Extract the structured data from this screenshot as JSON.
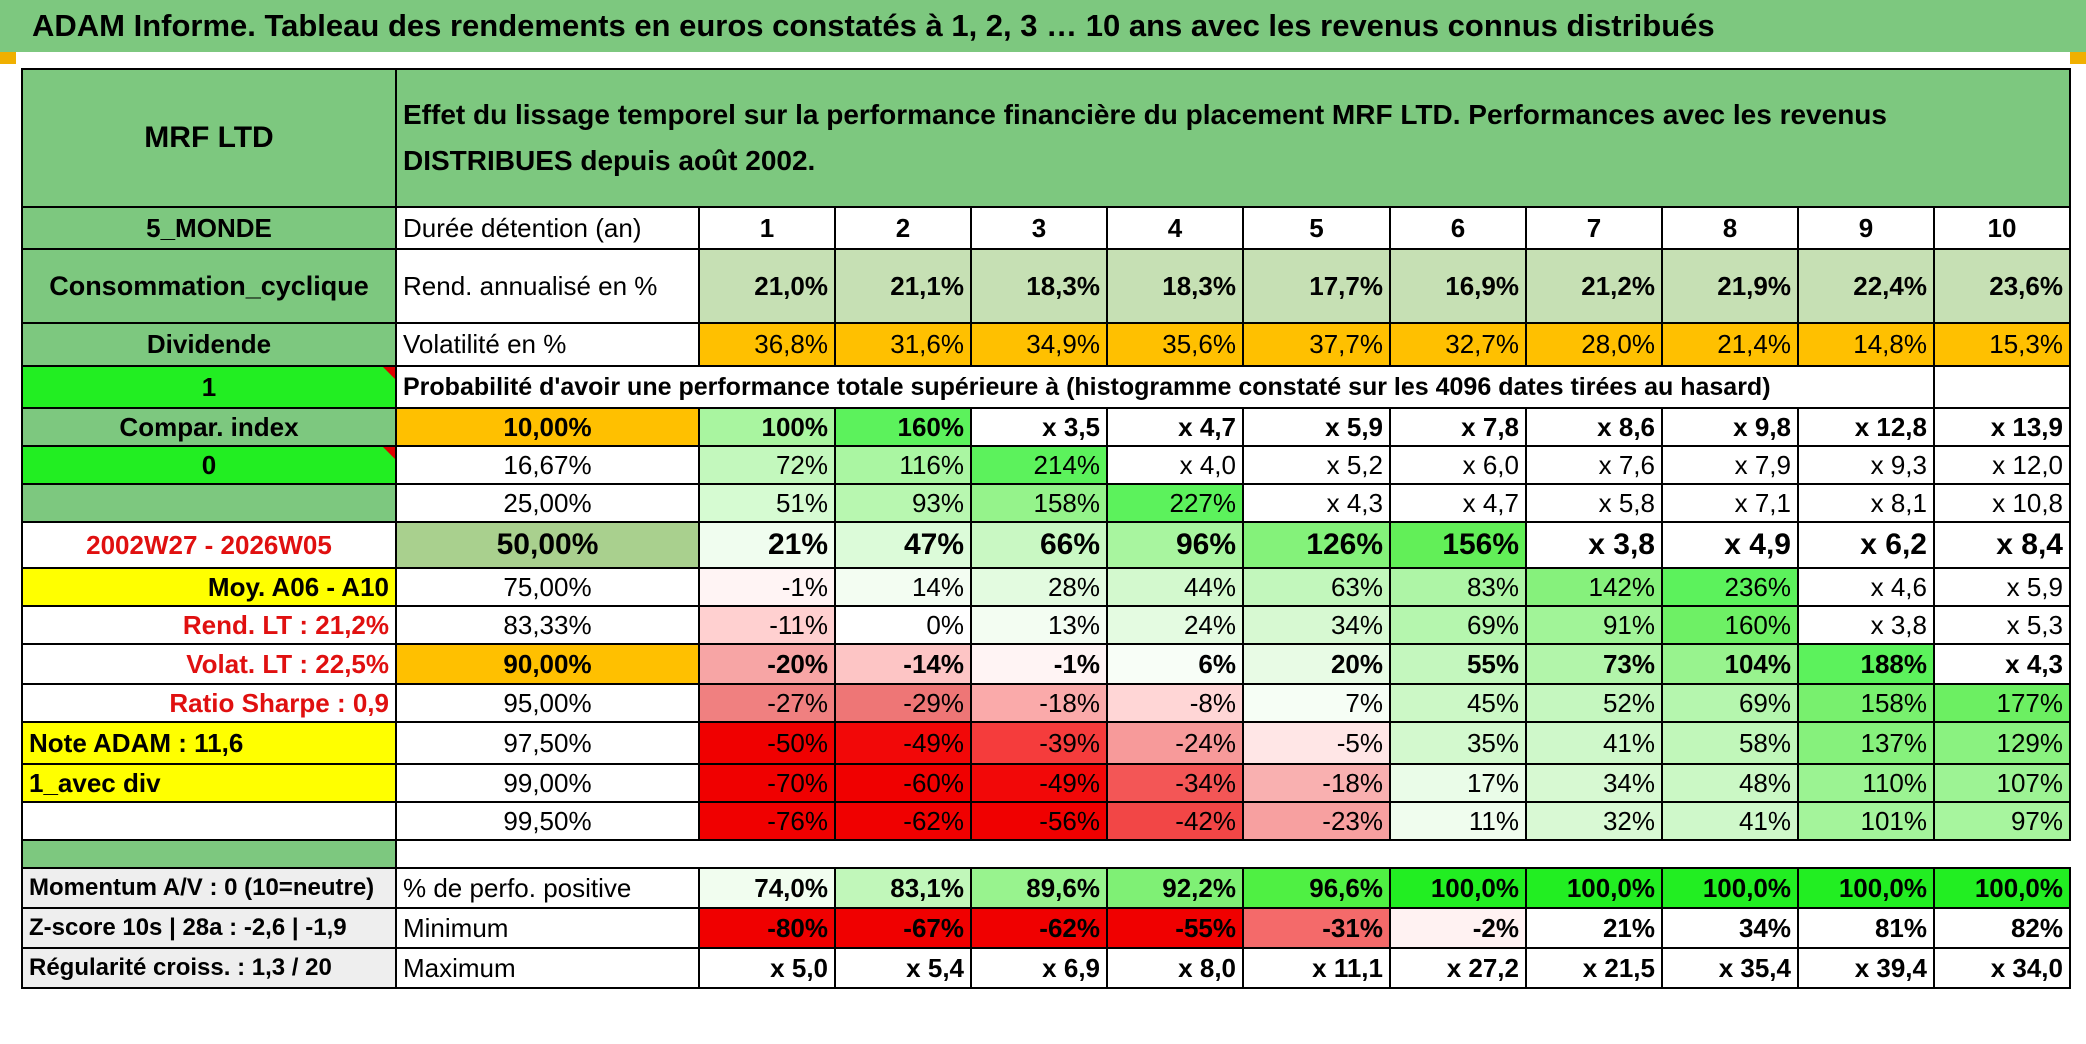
{
  "title": "ADAM Informe. Tableau des rendements en euros constatés à 1, 2, 3 … 10 ans avec les revenus connus distribués",
  "fund_name": "MRF LTD",
  "subtitle": "Effet du lissage temporel sur la performance financière du placement MRF LTD. Performances avec les revenus DISTRIBUES depuis août 2002.",
  "left_labels": {
    "region": "5_MONDE",
    "sector": "Consommation_cyclique",
    "income": "Dividende",
    "selector": "1",
    "compar_index": "Compar. index",
    "compar_value": "0",
    "period": "2002W27 - 2026W05",
    "moy": "Moy. A06 - A10",
    "rend_lt": "Rend. LT :   21,2%",
    "volat_lt": "Volat. LT :   22,5%",
    "sharpe": "Ratio Sharpe :    0,9",
    "note": "Note ADAM : 11,6",
    "avec_div": "1_avec div",
    "momentum": "Momentum A/V : 0 (10=neutre)",
    "zscore": "Z-score 10s | 28a : -2,6 | -1,9",
    "regularite": "Régularité croiss. : 1,3 / 20"
  },
  "header": {
    "label": "Durée détention (an)",
    "years": [
      "1",
      "2",
      "3",
      "4",
      "5",
      "6",
      "7",
      "8",
      "9",
      "10"
    ]
  },
  "rend": {
    "label": "Rend. annualisé en %",
    "values": [
      "21,0%",
      "21,1%",
      "18,3%",
      "18,3%",
      "17,7%",
      "16,9%",
      "21,2%",
      "21,9%",
      "22,4%",
      "23,6%"
    ],
    "colors": [
      "#c6e0b4",
      "#c6e0b4",
      "#c6e0b4",
      "#c6e0b4",
      "#c6e0b4",
      "#c6e0b4",
      "#c6e0b4",
      "#c6e0b4",
      "#c6e0b4",
      "#c6e0b4"
    ]
  },
  "vol": {
    "label": "Volatilité en %",
    "values": [
      "36,8%",
      "31,6%",
      "34,9%",
      "35,6%",
      "37,7%",
      "32,7%",
      "28,0%",
      "21,4%",
      "14,8%",
      "15,3%"
    ],
    "colors": [
      "#ffc000",
      "#ffc000",
      "#ffc000",
      "#ffc000",
      "#ffc000",
      "#ffc000",
      "#ffc000",
      "#ffc000",
      "#ffc000",
      "#ffc000"
    ]
  },
  "proba_label": "Probabilité d'avoir une performance totale supérieure à (histogramme constaté sur les 4096 dates tirées au hasard)",
  "prob_rows": [
    {
      "pct": "10,00%",
      "pct_color": "#ffc000",
      "bold": true,
      "big": false,
      "values": [
        "100%",
        "160%",
        "x 3,5",
        "x 4,7",
        "x 5,9",
        "x 7,8",
        "x 8,6",
        "x 9,8",
        "x 12,8",
        "x 13,9"
      ],
      "colors": [
        "#a9f5a0",
        "#5cf25c",
        "#ffffff",
        "#ffffff",
        "#ffffff",
        "#ffffff",
        "#ffffff",
        "#ffffff",
        "#ffffff",
        "#ffffff"
      ]
    },
    {
      "pct": "16,67%",
      "pct_color": "#ffffff",
      "bold": false,
      "big": false,
      "values": [
        "72%",
        "116%",
        "214%",
        "x 4,0",
        "x 5,2",
        "x 6,0",
        "x 7,6",
        "x 7,9",
        "x 9,3",
        "x 12,0"
      ],
      "colors": [
        "#c3f8bd",
        "#aaf6a2",
        "#5cf25c",
        "#ffffff",
        "#ffffff",
        "#ffffff",
        "#ffffff",
        "#ffffff",
        "#ffffff",
        "#ffffff"
      ]
    },
    {
      "pct": "25,00%",
      "pct_color": "#ffffff",
      "bold": false,
      "big": false,
      "values": [
        "51%",
        "93%",
        "158%",
        "227%",
        "x 4,3",
        "x 4,7",
        "x 5,8",
        "x 7,1",
        "x 8,1",
        "x 10,8"
      ],
      "colors": [
        "#d6fbd2",
        "#b8f7b0",
        "#95f38b",
        "#5cf25c",
        "#ffffff",
        "#ffffff",
        "#ffffff",
        "#ffffff",
        "#ffffff",
        "#ffffff"
      ]
    },
    {
      "pct": "50,00%",
      "pct_color": "#a9d08e",
      "bold": true,
      "big": true,
      "values": [
        "21%",
        "47%",
        "66%",
        "96%",
        "126%",
        "156%",
        "x 3,8",
        "x 4,9",
        "x 6,2",
        "x 8,4"
      ],
      "colors": [
        "#f0fdef",
        "#dcfbd9",
        "#c9f8c3",
        "#a8f59f",
        "#84f27a",
        "#62ef58",
        "#ffffff",
        "#ffffff",
        "#ffffff",
        "#ffffff"
      ]
    },
    {
      "pct": "75,00%",
      "pct_color": "#ffffff",
      "bold": false,
      "big": false,
      "values": [
        "-1%",
        "14%",
        "28%",
        "44%",
        "63%",
        "83%",
        "142%",
        "236%",
        "x 4,6",
        "x 5,9"
      ],
      "colors": [
        "#fff4f4",
        "#f3fdf2",
        "#e3fbe0",
        "#d3f9ce",
        "#c2f7bc",
        "#aef5a6",
        "#86f17c",
        "#5cf25c",
        "#ffffff",
        "#ffffff"
      ]
    },
    {
      "pct": "83,33%",
      "pct_color": "#ffffff",
      "bold": false,
      "big": false,
      "values": [
        "-11%",
        "0%",
        "13%",
        "24%",
        "34%",
        "69%",
        "91%",
        "160%",
        "x 3,8",
        "x 5,3"
      ],
      "colors": [
        "#ffd0d0",
        "#ffffff",
        "#f3fdf2",
        "#e4fbe1",
        "#d7f9d2",
        "#b5f6ae",
        "#a1f498",
        "#6ef065",
        "#ffffff",
        "#ffffff"
      ]
    },
    {
      "pct": "90,00%",
      "pct_color": "#ffc000",
      "bold": true,
      "big": false,
      "values": [
        "-20%",
        "-14%",
        "-1%",
        "6%",
        "20%",
        "55%",
        "73%",
        "104%",
        "188%",
        "x 4,3"
      ],
      "colors": [
        "#f7a5a5",
        "#fdc5c5",
        "#fff4f4",
        "#f8fef7",
        "#e8fbe5",
        "#c4f7be",
        "#b2f5aa",
        "#98f38e",
        "#5cf25c",
        "#ffffff"
      ]
    },
    {
      "pct": "95,00%",
      "pct_color": "#ffffff",
      "bold": false,
      "big": false,
      "values": [
        "-27%",
        "-29%",
        "-18%",
        "-8%",
        "7%",
        "45%",
        "52%",
        "69%",
        "158%",
        "177%"
      ],
      "colors": [
        "#f08080",
        "#ee7676",
        "#faaaaa",
        "#ffd6d6",
        "#f6fef5",
        "#ccf8c6",
        "#c5f7bf",
        "#b5f6ae",
        "#78f06e",
        "#6cef62"
      ]
    },
    {
      "pct": "97,50%",
      "pct_color": "#ffffff",
      "bold": false,
      "big": false,
      "values": [
        "-50%",
        "-49%",
        "-39%",
        "-24%",
        "-5%",
        "35%",
        "41%",
        "58%",
        "137%",
        "129%"
      ],
      "colors": [
        "#f00000",
        "#f20808",
        "#f53c3c",
        "#f79a9a",
        "#ffe6e6",
        "#d3f9ce",
        "#cff8ca",
        "#c1f7ba",
        "#86f17c",
        "#8af280"
      ]
    },
    {
      "pct": "99,00%",
      "pct_color": "#ffffff",
      "bold": false,
      "big": false,
      "values": [
        "-70%",
        "-60%",
        "-49%",
        "-34%",
        "-18%",
        "17%",
        "34%",
        "48%",
        "110%",
        "107%"
      ],
      "colors": [
        "#f00000",
        "#f00000",
        "#f20808",
        "#f35656",
        "#f9b0b0",
        "#eafcE8",
        "#d7f9d2",
        "#cbf8c5",
        "#9bf392",
        "#9df394"
      ]
    },
    {
      "pct": "99,50%",
      "pct_color": "#ffffff",
      "bold": false,
      "big": false,
      "values": [
        "-76%",
        "-62%",
        "-56%",
        "-42%",
        "-23%",
        "11%",
        "32%",
        "41%",
        "101%",
        "97%"
      ],
      "colors": [
        "#f00000",
        "#f00000",
        "#f00000",
        "#f24646",
        "#f7a0a0",
        "#f0fdee",
        "#d9f9d4",
        "#cff8ca",
        "#a4f49b",
        "#a7f59e"
      ]
    }
  ],
  "bottom_rows": [
    {
      "label": "% de perfo. positive",
      "values": [
        "74,0%",
        "83,1%",
        "89,6%",
        "92,2%",
        "96,6%",
        "100,0%",
        "100,0%",
        "100,0%",
        "100,0%",
        "100,0%"
      ],
      "colors": [
        "#f1fdef",
        "#c1f7ba",
        "#98f38e",
        "#7ff075",
        "#4ff043",
        "#22ee22",
        "#22ee22",
        "#22ee22",
        "#22ee22",
        "#22ee22"
      ]
    },
    {
      "label": "Minimum",
      "values": [
        "-80%",
        "-67%",
        "-62%",
        "-55%",
        "-31%",
        "-2%",
        "21%",
        "34%",
        "81%",
        "82%"
      ],
      "colors": [
        "#f00000",
        "#f00000",
        "#f00000",
        "#f00000",
        "#f46a6a",
        "#fff2f2",
        "#ffffff",
        "#ffffff",
        "#ffffff",
        "#ffffff"
      ]
    },
    {
      "label": "Maximum",
      "values": [
        "x 5,0",
        "x 5,4",
        "x 6,9",
        "x 8,0",
        "x 11,1",
        "x 27,2",
        "x 21,5",
        "x 35,4",
        "x 39,4",
        "x 34,0"
      ],
      "colors": [
        "#ffffff",
        "#ffffff",
        "#ffffff",
        "#ffffff",
        "#ffffff",
        "#ffffff",
        "#ffffff",
        "#ffffff",
        "#ffffff",
        "#ffffff"
      ]
    }
  ]
}
